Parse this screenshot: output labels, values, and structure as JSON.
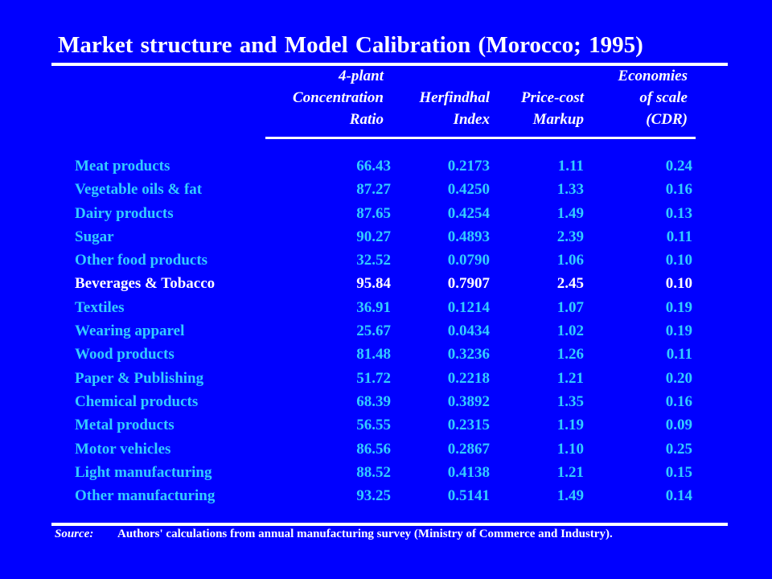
{
  "title": "Market structure  and Model Calibration  (Morocco; 1995)",
  "headers": {
    "concentration": [
      "4-plant",
      "Concentration",
      "Ratio"
    ],
    "herfindhal": [
      "Herfindhal",
      "Index"
    ],
    "price_cost": [
      "Price-cost",
      "Markup"
    ],
    "economies": [
      "Economies",
      "of scale",
      "(CDR)"
    ]
  },
  "rows": [
    {
      "name": "Meat products",
      "conc": "66.43",
      "herf": "0.2173",
      "price": "1.11",
      "econ": "0.24"
    },
    {
      "name": "Vegetable oils & fat",
      "conc": "87.27",
      "herf": "0.4250",
      "price": "1.33",
      "econ": "0.16"
    },
    {
      "name": "Dairy products",
      "conc": "87.65",
      "herf": "0.4254",
      "price": "1.49",
      "econ": "0.13"
    },
    {
      "name": "Sugar",
      "conc": "90.27",
      "herf": "0.4893",
      "price": "2.39",
      "econ": "0.11"
    },
    {
      "name": "Other food products",
      "conc": "32.52",
      "herf": "0.0790",
      "price": "1.06",
      "econ": "0.10"
    },
    {
      "name": "Beverages & Tobacco",
      "conc": "95.84",
      "herf": "0.7907",
      "price": "2.45",
      "econ": "0.10",
      "highlight": true
    },
    {
      "name": "Textiles",
      "conc": "36.91",
      "herf": "0.1214",
      "price": "1.07",
      "econ": "0.19"
    },
    {
      "name": "Wearing apparel",
      "conc": "25.67",
      "herf": "0.0434",
      "price": "1.02",
      "econ": "0.19"
    },
    {
      "name": "Wood products",
      "conc": "81.48",
      "herf": "0.3236",
      "price": "1.26",
      "econ": "0.11"
    },
    {
      "name": "Paper & Publishing",
      "conc": "51.72",
      "herf": "0.2218",
      "price": "1.21",
      "econ": "0.20"
    },
    {
      "name": "Chemical products",
      "conc": "68.39",
      "herf": "0.3892",
      "price": "1.35",
      "econ": "0.16"
    },
    {
      "name": "Metal products",
      "conc": "56.55",
      "herf": "0.2315",
      "price": "1.19",
      "econ": "0.09"
    },
    {
      "name": "Motor vehicles",
      "conc": "86.56",
      "herf": "0.2867",
      "price": "1.10",
      "econ": "0.25"
    },
    {
      "name": "Light manufacturing",
      "conc": "88.52",
      "herf": "0.4138",
      "price": "1.21",
      "econ": "0.15"
    },
    {
      "name": "Other manufacturing",
      "conc": "93.25",
      "herf": "0.5141",
      "price": "1.49",
      "econ": "0.14"
    }
  ],
  "source": {
    "label": "Source:",
    "text": "Authors' calculations from annual manufacturing survey (Ministry of Commerce and Industry)."
  },
  "colors": {
    "background": "#0000FF",
    "text_row": "#33CCFF",
    "text_highlight": "#FFFFFF"
  }
}
